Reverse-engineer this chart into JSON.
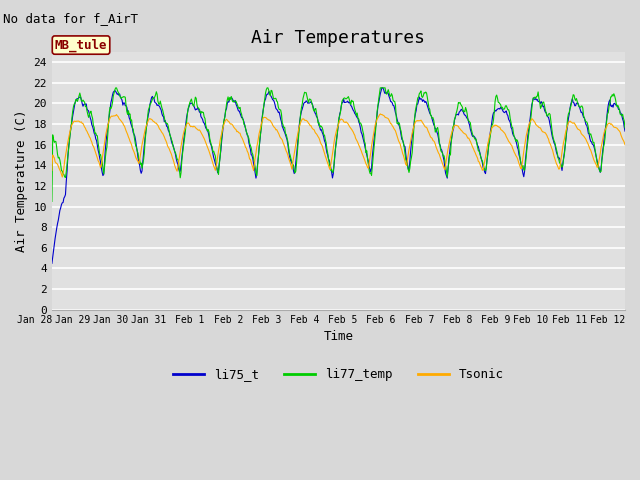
{
  "title": "Air Temperatures",
  "subtitle": "No data for f_AirT",
  "xlabel": "Time",
  "ylabel": "Air Temperature (C)",
  "ylim": [
    0,
    25
  ],
  "yticks": [
    0,
    2,
    4,
    6,
    8,
    10,
    12,
    14,
    16,
    18,
    20,
    22,
    24
  ],
  "bg_color": "#d8d8d8",
  "plot_bg_color": "#e0e0e0",
  "line_colors": {
    "li75_t": "#0000cc",
    "li77_temp": "#00cc00",
    "Tsonic": "#ffaa00"
  },
  "mb_tule_box": {
    "text": "MB_tule",
    "text_color": "#8b0000",
    "box_color": "#ffffcc",
    "border_color": "#8b0000"
  },
  "x_tick_labels": [
    "Jan 28",
    "Jan 29",
    "Jan 30",
    "Jan 31",
    "Feb 1",
    "Feb 2",
    "Feb 3",
    "Feb 4",
    "Feb 5",
    "Feb 6",
    "Feb 7",
    "Feb 8",
    "Feb 9",
    "Feb 10",
    "Feb 11",
    "Feb 12"
  ],
  "title_fontsize": 13,
  "label_fontsize": 9,
  "tick_fontsize": 8
}
